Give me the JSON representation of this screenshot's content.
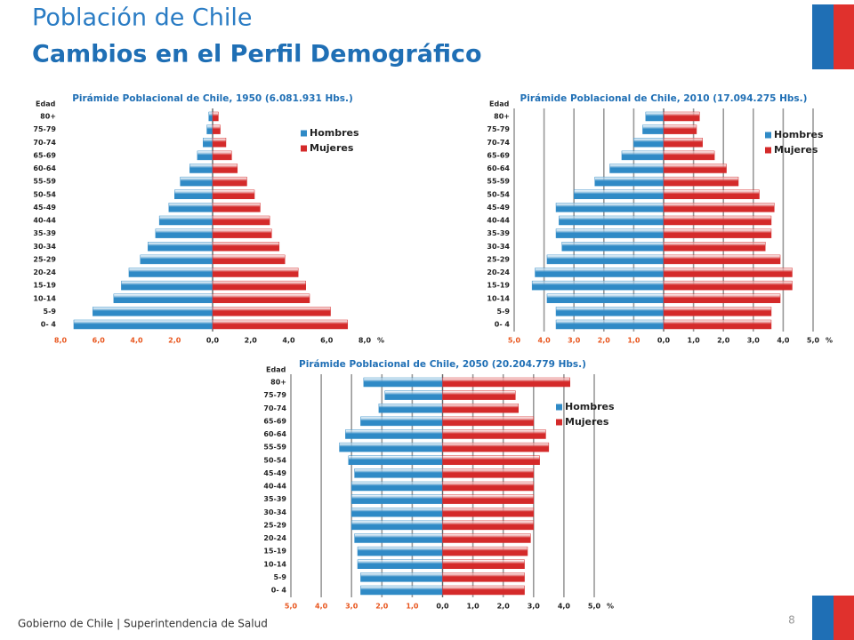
{
  "header": {
    "title": "Población de Chile",
    "subtitle": "Cambios en el Perfil Demográfico"
  },
  "footer": {
    "text": "Gobierno de Chile | Superintendencia de Salud",
    "page": "8"
  },
  "chart_data": [
    {
      "type": "pyramid",
      "title": "Pirámide Poblacional de Chile, 1950 (6.081.931 Hbs.)",
      "ylabel": "Edad",
      "unit": "%",
      "categories": [
        "0- 4",
        "5-9",
        "10-14",
        "15-19",
        "20-24",
        "25-29",
        "30-34",
        "35-39",
        "40-44",
        "45-49",
        "50-54",
        "55-59",
        "60-64",
        "65-69",
        "70-74",
        "75-79",
        "80+"
      ],
      "series": [
        {
          "name": "Hombres",
          "color": "#2f8ac6",
          "side": "left",
          "values": [
            7.3,
            6.3,
            5.2,
            4.8,
            4.4,
            3.8,
            3.4,
            3.0,
            2.8,
            2.3,
            2.0,
            1.7,
            1.2,
            0.8,
            0.5,
            0.3,
            0.2
          ]
        },
        {
          "name": "Mujeres",
          "color": "#d42a2a",
          "side": "right",
          "values": [
            7.1,
            6.2,
            5.1,
            4.9,
            4.5,
            3.8,
            3.5,
            3.1,
            3.0,
            2.5,
            2.2,
            1.8,
            1.3,
            1.0,
            0.7,
            0.4,
            0.3
          ]
        }
      ],
      "xlim": [
        -8,
        8
      ],
      "xticks": [
        {
          "value": -8,
          "label": "8,0"
        },
        {
          "value": -6,
          "label": "6,0"
        },
        {
          "value": -4,
          "label": "4,0"
        },
        {
          "value": -2,
          "label": "2,0"
        },
        {
          "value": 0,
          "label": "0,0"
        },
        {
          "value": 2,
          "label": "2,0"
        },
        {
          "value": 4,
          "label": "4,0"
        },
        {
          "value": 6,
          "label": "6,0"
        },
        {
          "value": 8,
          "label": "8,0"
        }
      ],
      "grid": false,
      "legend": "upper right"
    },
    {
      "type": "pyramid",
      "title": "Pirámide Poblacional de Chile, 2010 (17.094.275 Hbs.)",
      "ylabel": "Edad",
      "unit": "%",
      "categories": [
        "0- 4",
        "5-9",
        "10-14",
        "15-19",
        "20-24",
        "25-29",
        "30-34",
        "35-39",
        "40-44",
        "45-49",
        "50-54",
        "55-59",
        "60-64",
        "65-69",
        "70-74",
        "75-79",
        "80+"
      ],
      "series": [
        {
          "name": "Hombres",
          "color": "#2f8ac6",
          "side": "left",
          "values": [
            3.6,
            3.6,
            3.9,
            4.4,
            4.3,
            3.9,
            3.4,
            3.6,
            3.5,
            3.6,
            3.0,
            2.3,
            1.8,
            1.4,
            1.0,
            0.7,
            0.6
          ]
        },
        {
          "name": "Mujeres",
          "color": "#d42a2a",
          "side": "right",
          "values": [
            3.6,
            3.6,
            3.9,
            4.3,
            4.3,
            3.9,
            3.4,
            3.6,
            3.6,
            3.7,
            3.2,
            2.5,
            2.1,
            1.7,
            1.3,
            1.1,
            1.2
          ]
        }
      ],
      "xlim": [
        -5,
        5
      ],
      "xticks": [
        {
          "value": -5,
          "label": "5,0"
        },
        {
          "value": -4,
          "label": "4,0"
        },
        {
          "value": -3,
          "label": "3,0"
        },
        {
          "value": -2,
          "label": "2,0"
        },
        {
          "value": -1,
          "label": "1,0"
        },
        {
          "value": 0,
          "label": "0,0"
        },
        {
          "value": 1,
          "label": "1,0"
        },
        {
          "value": 2,
          "label": "2,0"
        },
        {
          "value": 3,
          "label": "3,0"
        },
        {
          "value": 4,
          "label": "4,0"
        },
        {
          "value": 5,
          "label": "5,0"
        }
      ],
      "grid": true,
      "legend": "upper right"
    },
    {
      "type": "pyramid",
      "title": "Pirámide Poblacional de Chile, 2050 (20.204.779 Hbs.)",
      "ylabel": "Edad",
      "unit": "%",
      "categories": [
        "0- 4",
        "5-9",
        "10-14",
        "15-19",
        "20-24",
        "25-29",
        "30-34",
        "35-39",
        "40-44",
        "45-49",
        "50-54",
        "55-59",
        "60-64",
        "65-69",
        "70-74",
        "75-79",
        "80+"
      ],
      "series": [
        {
          "name": "Hombres",
          "color": "#2f8ac6",
          "side": "left",
          "values": [
            2.7,
            2.7,
            2.8,
            2.8,
            2.9,
            3.0,
            3.0,
            3.0,
            3.0,
            2.9,
            3.1,
            3.4,
            3.2,
            2.7,
            2.1,
            1.9,
            2.6
          ]
        },
        {
          "name": "Mujeres",
          "color": "#d42a2a",
          "side": "right",
          "values": [
            2.7,
            2.7,
            2.7,
            2.8,
            2.9,
            3.0,
            3.0,
            3.0,
            3.0,
            3.0,
            3.2,
            3.5,
            3.4,
            3.0,
            2.5,
            2.4,
            4.2
          ]
        }
      ],
      "xlim": [
        -5,
        5
      ],
      "xticks": [
        {
          "value": -5,
          "label": "5,0"
        },
        {
          "value": -4,
          "label": "4,0"
        },
        {
          "value": -3,
          "label": "3,0"
        },
        {
          "value": -2,
          "label": "2,0"
        },
        {
          "value": -1,
          "label": "1,0"
        },
        {
          "value": 0,
          "label": "0,0"
        },
        {
          "value": 1,
          "label": "1,0"
        },
        {
          "value": 2,
          "label": "2,0"
        },
        {
          "value": 3,
          "label": "3,0"
        },
        {
          "value": 4,
          "label": "4,0"
        },
        {
          "value": 5,
          "label": "5,0"
        }
      ],
      "grid": true,
      "legend": "upper right"
    }
  ]
}
